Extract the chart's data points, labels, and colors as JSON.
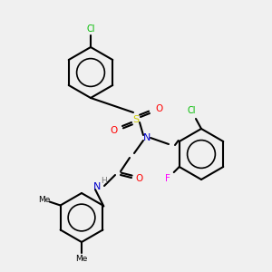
{
  "background_color": "#f0f0f0",
  "figsize": [
    3.0,
    3.0
  ],
  "dpi": 100,
  "atom_colors": {
    "N": "#0000cc",
    "O": "#ff0000",
    "S": "#cccc00",
    "Cl": "#00bb00",
    "F": "#ff00ff",
    "H": "#777777",
    "C": "#000000"
  },
  "bonds": [
    {
      "type": "aromatic_ring",
      "id": "ring_top"
    },
    {
      "type": "aromatic_ring",
      "id": "ring_right"
    },
    {
      "type": "aromatic_ring",
      "id": "ring_bottom"
    }
  ]
}
